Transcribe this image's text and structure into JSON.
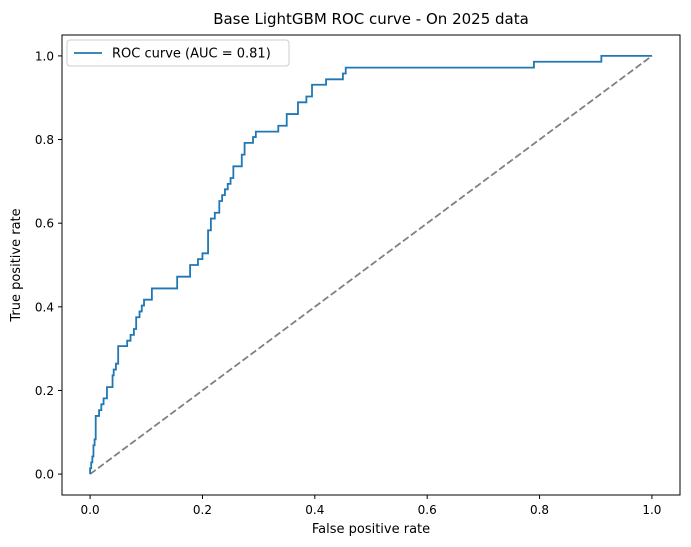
{
  "chart_data": {
    "type": "line",
    "title": "Base LightGBM ROC curve - On 2025 data",
    "xlabel": "False positive rate",
    "ylabel": "True positive rate",
    "xlim": [
      -0.05,
      1.05
    ],
    "ylim": [
      -0.05,
      1.05
    ],
    "xticks": [
      0.0,
      0.2,
      0.4,
      0.6,
      0.8,
      1.0
    ],
    "yticks": [
      0.0,
      0.2,
      0.4,
      0.6,
      0.8,
      1.0
    ],
    "xtick_labels": [
      "0.0",
      "0.2",
      "0.4",
      "0.6",
      "0.8",
      "1.0"
    ],
    "ytick_labels": [
      "0.0",
      "0.2",
      "0.4",
      "0.6",
      "0.8",
      "1.0"
    ],
    "grid": false,
    "legend_position": "upper-left",
    "series": [
      {
        "name": "ROC curve (AUC = 0.81)",
        "color": "#1f77b4",
        "style": "solid",
        "points": [
          [
            0.0,
            0.0
          ],
          [
            0.0,
            0.014
          ],
          [
            0.002,
            0.014
          ],
          [
            0.002,
            0.028
          ],
          [
            0.004,
            0.028
          ],
          [
            0.004,
            0.042
          ],
          [
            0.006,
            0.042
          ],
          [
            0.006,
            0.069
          ],
          [
            0.008,
            0.069
          ],
          [
            0.008,
            0.083
          ],
          [
            0.01,
            0.083
          ],
          [
            0.01,
            0.097
          ],
          [
            0.01,
            0.139
          ],
          [
            0.016,
            0.139
          ],
          [
            0.016,
            0.153
          ],
          [
            0.02,
            0.153
          ],
          [
            0.02,
            0.167
          ],
          [
            0.024,
            0.167
          ],
          [
            0.024,
            0.181
          ],
          [
            0.03,
            0.181
          ],
          [
            0.03,
            0.208
          ],
          [
            0.04,
            0.208
          ],
          [
            0.04,
            0.236
          ],
          [
            0.042,
            0.236
          ],
          [
            0.042,
            0.25
          ],
          [
            0.046,
            0.25
          ],
          [
            0.046,
            0.264
          ],
          [
            0.05,
            0.264
          ],
          [
            0.05,
            0.306
          ],
          [
            0.066,
            0.306
          ],
          [
            0.066,
            0.319
          ],
          [
            0.072,
            0.319
          ],
          [
            0.072,
            0.333
          ],
          [
            0.078,
            0.333
          ],
          [
            0.078,
            0.347
          ],
          [
            0.082,
            0.347
          ],
          [
            0.082,
            0.375
          ],
          [
            0.088,
            0.375
          ],
          [
            0.088,
            0.389
          ],
          [
            0.092,
            0.389
          ],
          [
            0.092,
            0.403
          ],
          [
            0.096,
            0.403
          ],
          [
            0.096,
            0.417
          ],
          [
            0.11,
            0.417
          ],
          [
            0.11,
            0.444
          ],
          [
            0.155,
            0.444
          ],
          [
            0.155,
            0.472
          ],
          [
            0.178,
            0.472
          ],
          [
            0.178,
            0.5
          ],
          [
            0.192,
            0.5
          ],
          [
            0.192,
            0.514
          ],
          [
            0.2,
            0.514
          ],
          [
            0.2,
            0.528
          ],
          [
            0.21,
            0.528
          ],
          [
            0.21,
            0.583
          ],
          [
            0.215,
            0.583
          ],
          [
            0.215,
            0.611
          ],
          [
            0.222,
            0.611
          ],
          [
            0.222,
            0.625
          ],
          [
            0.23,
            0.625
          ],
          [
            0.23,
            0.653
          ],
          [
            0.235,
            0.653
          ],
          [
            0.235,
            0.667
          ],
          [
            0.24,
            0.667
          ],
          [
            0.24,
            0.681
          ],
          [
            0.245,
            0.681
          ],
          [
            0.245,
            0.694
          ],
          [
            0.25,
            0.694
          ],
          [
            0.25,
            0.708
          ],
          [
            0.255,
            0.708
          ],
          [
            0.255,
            0.736
          ],
          [
            0.27,
            0.736
          ],
          [
            0.27,
            0.764
          ],
          [
            0.275,
            0.764
          ],
          [
            0.275,
            0.792
          ],
          [
            0.29,
            0.792
          ],
          [
            0.29,
            0.806
          ],
          [
            0.295,
            0.806
          ],
          [
            0.295,
            0.819
          ],
          [
            0.335,
            0.819
          ],
          [
            0.335,
            0.833
          ],
          [
            0.35,
            0.833
          ],
          [
            0.35,
            0.861
          ],
          [
            0.37,
            0.861
          ],
          [
            0.37,
            0.889
          ],
          [
            0.385,
            0.889
          ],
          [
            0.385,
            0.903
          ],
          [
            0.395,
            0.903
          ],
          [
            0.395,
            0.931
          ],
          [
            0.42,
            0.931
          ],
          [
            0.42,
            0.944
          ],
          [
            0.45,
            0.944
          ],
          [
            0.45,
            0.958
          ],
          [
            0.455,
            0.958
          ],
          [
            0.455,
            0.972
          ],
          [
            0.79,
            0.972
          ],
          [
            0.79,
            0.986
          ],
          [
            0.91,
            0.986
          ],
          [
            0.91,
            1.0
          ],
          [
            1.0,
            1.0
          ]
        ]
      },
      {
        "name": "",
        "color": "#808080",
        "style": "dashed",
        "points": [
          [
            0,
            0
          ],
          [
            1,
            1
          ]
        ]
      }
    ]
  }
}
